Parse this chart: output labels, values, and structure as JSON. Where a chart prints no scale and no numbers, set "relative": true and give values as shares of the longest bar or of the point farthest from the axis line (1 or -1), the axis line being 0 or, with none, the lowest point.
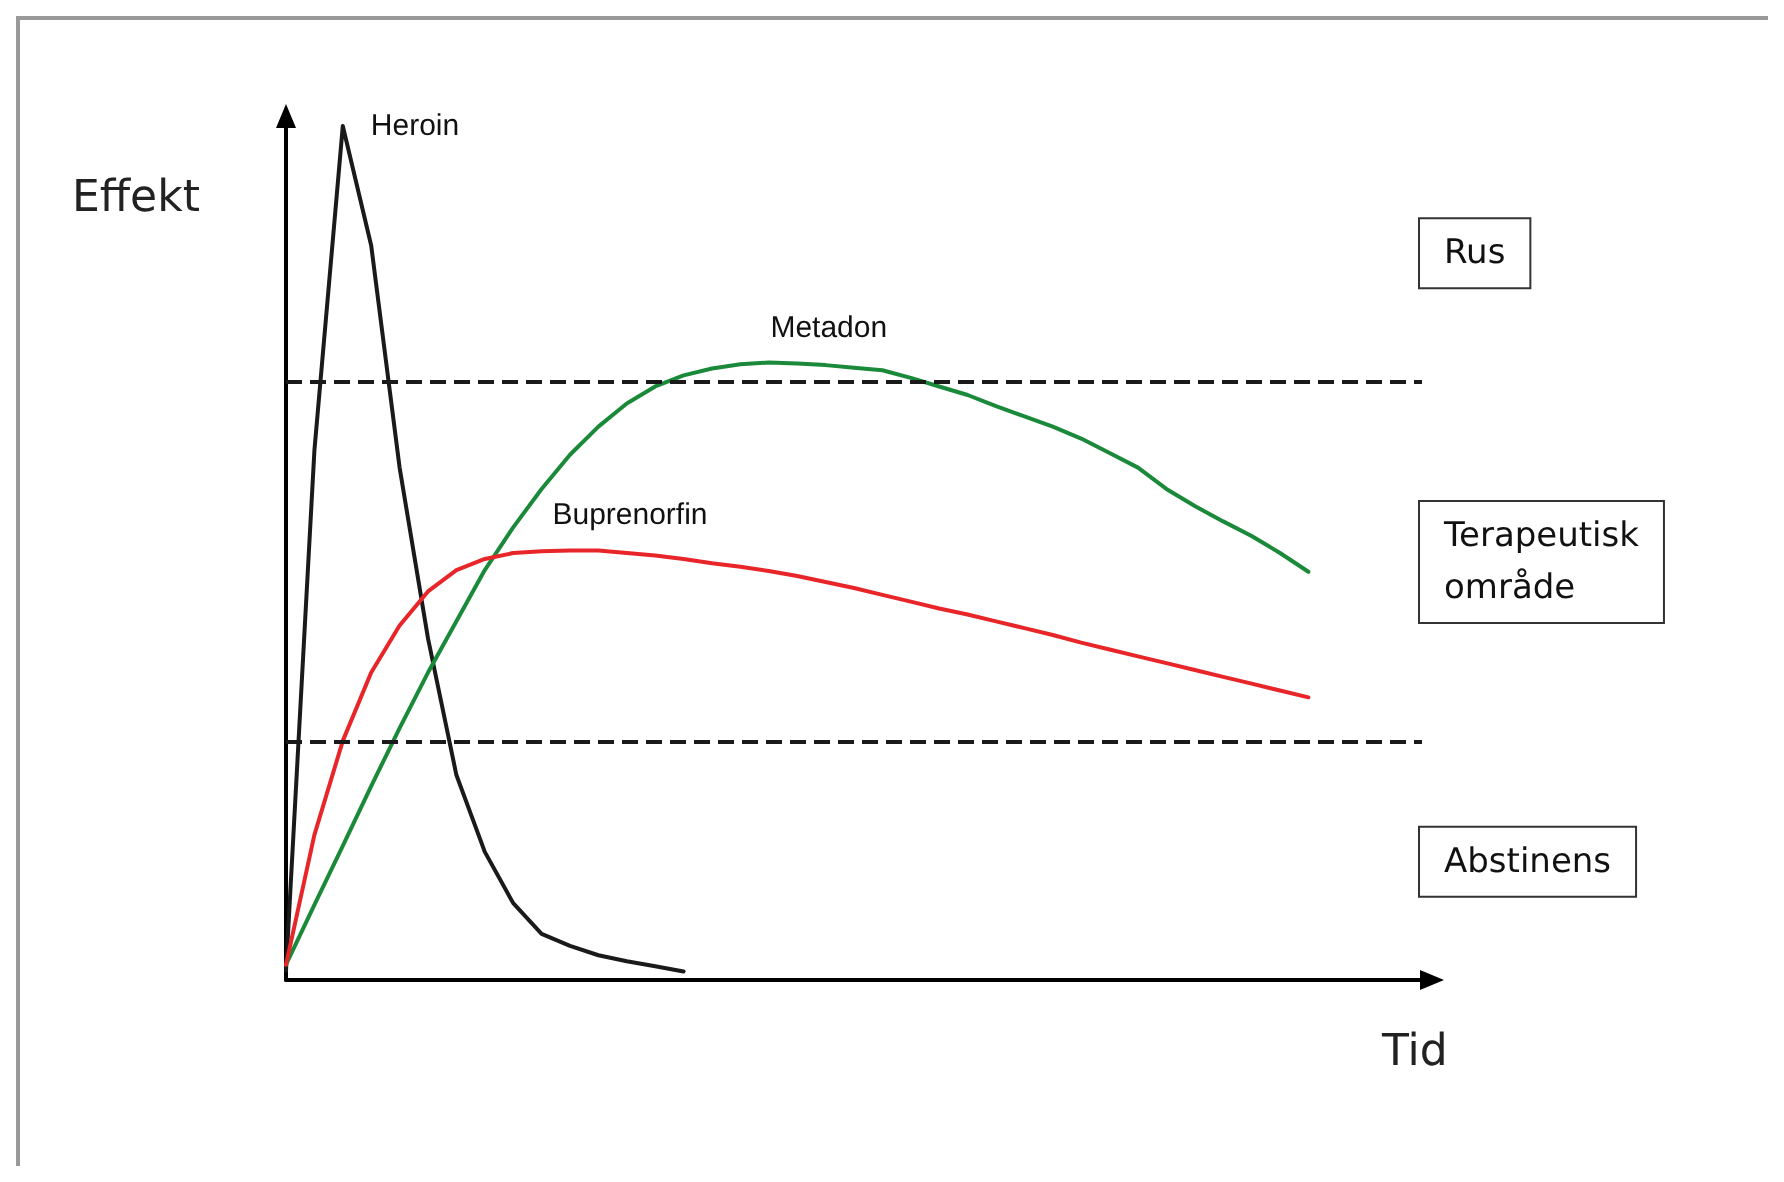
{
  "chart_data": {
    "type": "line",
    "relative": true,
    "xlabel": "Tid",
    "ylabel": "Effekt",
    "grid": false,
    "legend": false,
    "marker": "none",
    "line_style": "solid",
    "categories": [
      null,
      null,
      null,
      null,
      null,
      null,
      null,
      null,
      null,
      null,
      null,
      null,
      null,
      null,
      null,
      null,
      null,
      null,
      null,
      null,
      null,
      null,
      null,
      null,
      null,
      null,
      null,
      null,
      null,
      null,
      null,
      null,
      null,
      null,
      null,
      null,
      null,
      null,
      null,
      null,
      null
    ],
    "series": [
      {
        "name": "Heroin",
        "color": "#1a1a1a",
        "values": [
          0.011,
          0.62,
          1,
          0.86,
          0.6,
          0.4,
          0.24,
          0.15,
          0.09,
          0.054,
          0.04,
          0.029,
          0.022,
          0.016,
          0.01,
          null,
          null,
          null,
          null,
          null,
          null,
          null,
          null,
          null,
          null,
          null,
          null,
          null,
          null,
          null,
          null,
          null,
          null,
          null,
          null,
          null,
          null,
          null,
          null,
          null,
          null
        ]
      },
      {
        "name": "Metadon",
        "color": "#1a8a3a",
        "values": [
          0.018,
          0.088,
          0.157,
          0.227,
          0.295,
          0.36,
          0.42,
          0.48,
          0.53,
          0.575,
          0.615,
          0.648,
          0.675,
          0.695,
          0.708,
          0.716,
          0.721,
          0.723,
          0.722,
          0.72,
          0.717,
          0.714,
          0.705,
          0.695,
          0.685,
          0.672,
          0.66,
          0.648,
          0.634,
          0.617,
          0.6,
          0.575,
          0.555,
          0.537,
          0.52,
          0.5,
          0.478,
          null,
          null,
          null,
          null
        ]
      },
      {
        "name": "Buprenorfin",
        "color": "#e8262a",
        "values": [
          0.018,
          0.17,
          0.28,
          0.36,
          0.415,
          0.455,
          0.48,
          0.493,
          0.5,
          0.502,
          0.503,
          0.503,
          0.5,
          0.497,
          0.493,
          0.488,
          0.484,
          0.479,
          0.473,
          0.466,
          0.459,
          0.451,
          0.443,
          0.435,
          0.428,
          0.42,
          0.412,
          0.404,
          0.395,
          0.387,
          0.379,
          0.371,
          0.363,
          0.355,
          0.347,
          0.339,
          0.331,
          null,
          null,
          null,
          null
        ]
      }
    ],
    "ref_lines": [
      {
        "axis": "y",
        "value": 0.702,
        "color": "#1a1a1a",
        "line_style": "dashed"
      },
      {
        "axis": "y",
        "value": 0.277,
        "color": "#1a1a1a",
        "line_style": "dashed"
      }
    ],
    "annotations": [
      "Rus",
      "Terapeutisk\nområde",
      "Abstinens"
    ]
  }
}
